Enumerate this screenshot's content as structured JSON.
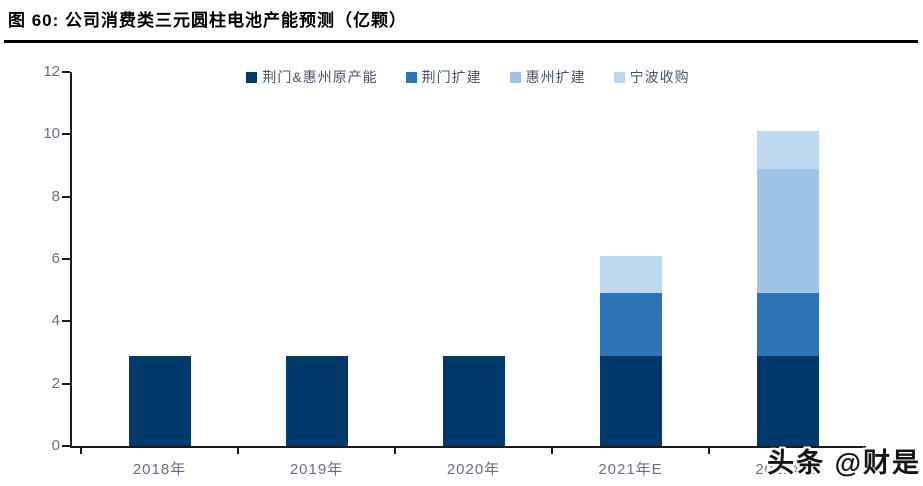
{
  "figure": {
    "title": "图 60:  公司消费类三元圆柱电池产能预测（亿颗）"
  },
  "watermark": {
    "text": "头条 @财是"
  },
  "chart_data": {
    "type": "bar",
    "stacked": true,
    "title": "公司消费类三元圆柱电池产能预测（亿颗）",
    "xlabel": "",
    "ylabel": "",
    "categories": [
      "2018年",
      "2019年",
      "2020年",
      "2021年E",
      "2022年E"
    ],
    "series": [
      {
        "name": "荆门&惠州原产能",
        "color": "#003A6B",
        "values": [
          2.9,
          2.9,
          2.9,
          2.9,
          2.9
        ]
      },
      {
        "name": "荆门扩建",
        "color": "#2E75B6",
        "values": [
          0,
          0,
          0,
          2.0,
          2.0
        ]
      },
      {
        "name": "惠州扩建",
        "color": "#9DC3E6",
        "values": [
          0,
          0,
          0,
          0,
          4.0
        ]
      },
      {
        "name": "宁波收购",
        "color": "#BDD7EE",
        "values": [
          0,
          0,
          0,
          1.2,
          1.2
        ]
      }
    ],
    "totals": [
      2.9,
      2.9,
      2.9,
      6.1,
      10.1
    ],
    "ylim": [
      0,
      12
    ],
    "yticks": [
      0,
      2,
      4,
      6,
      8,
      10,
      12
    ],
    "legend_position": "top-center",
    "grid": false,
    "axis_color": "#1a1a1a",
    "tick_label_color": "#667180"
  }
}
